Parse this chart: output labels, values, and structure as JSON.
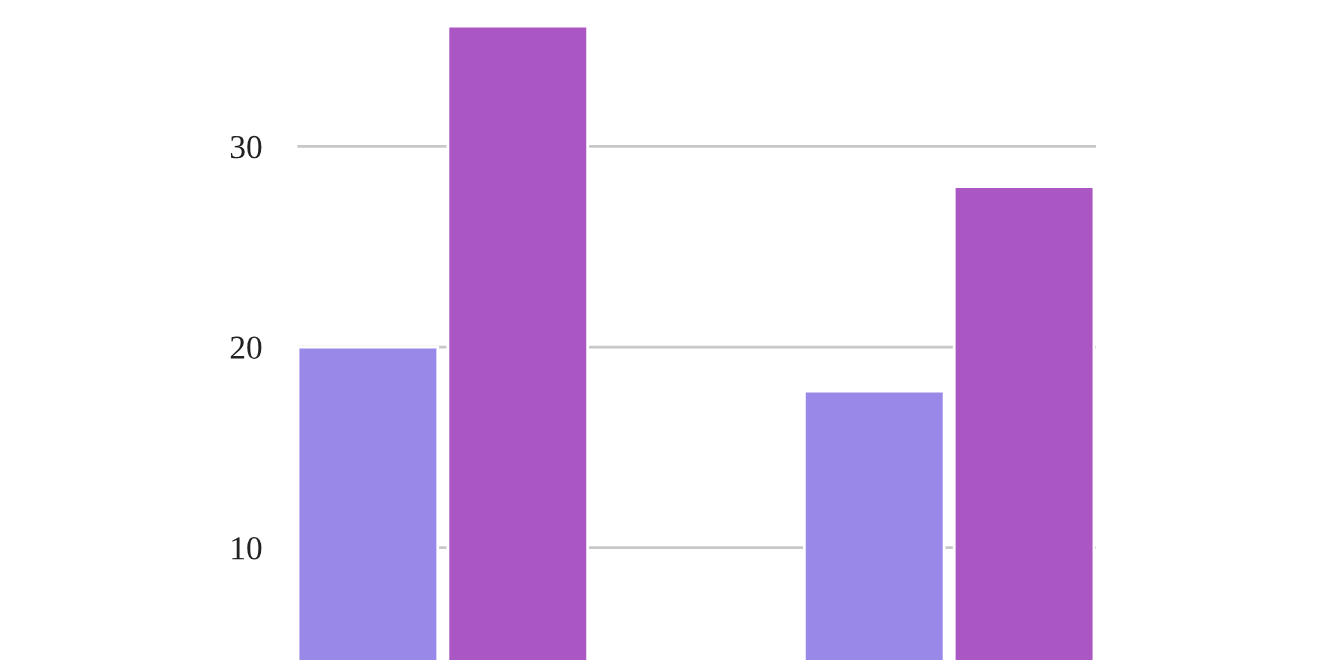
{
  "chart_data": {
    "type": "bar",
    "categories": [
      null,
      null
    ],
    "series": [
      {
        "color": "#9a88e8",
        "values": [
          20,
          17.8
        ]
      },
      {
        "color": "#ab57c3",
        "values": [
          36,
          28
        ]
      }
    ],
    "ylim": [
      4.4,
      37.3
    ],
    "yticks": [
      10,
      20,
      30
    ],
    "grid": "y",
    "tick_labels": "y"
  }
}
